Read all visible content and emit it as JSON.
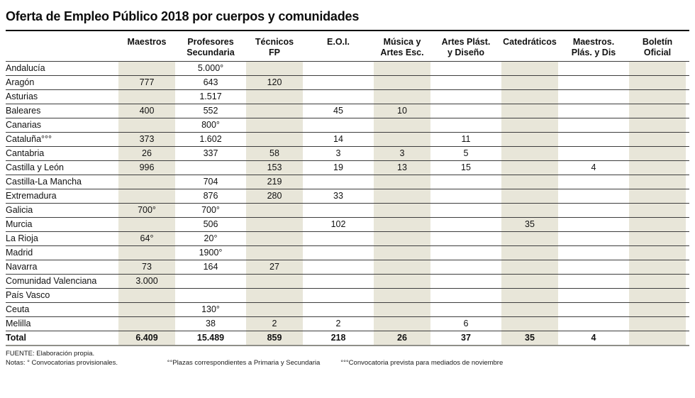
{
  "title": "Oferta de Empleo Público 2018 por cuerpos y comunidades",
  "colors": {
    "band": "#e8e6d9",
    "title_rule": "#000000",
    "row_line": "#3d3d3d",
    "bottom_line": "#8f8f88"
  },
  "chart_data": {
    "type": "table",
    "title": "Oferta de Empleo Público 2018 por cuerpos y comunidades",
    "columns": [
      {
        "line1": "Maestros",
        "line2": "",
        "shaded": true
      },
      {
        "line1": "Profesores",
        "line2": "Secundaria",
        "shaded": false
      },
      {
        "line1": "Técnicos",
        "line2": "FP",
        "shaded": true
      },
      {
        "line1": "E.O.I.",
        "line2": "",
        "shaded": false
      },
      {
        "line1": "Música y",
        "line2": "Artes Esc.",
        "shaded": true
      },
      {
        "line1": "Artes Plást.",
        "line2": "y Diseño",
        "shaded": false
      },
      {
        "line1": "Catedráticos",
        "line2": "",
        "shaded": true
      },
      {
        "line1": "Maestros.",
        "line2": "Plás. y Dis",
        "shaded": false
      },
      {
        "line1": "Boletín",
        "line2": "Oficial",
        "shaded": true
      }
    ],
    "rows": [
      {
        "region": "Andalucía",
        "values": [
          "",
          "5.000°",
          "",
          "",
          "",
          "",
          "",
          "",
          ""
        ]
      },
      {
        "region": "Aragón",
        "values": [
          "777",
          "643",
          "120",
          "",
          "",
          "",
          "",
          "",
          ""
        ]
      },
      {
        "region": "Asturias",
        "values": [
          "",
          "1.517",
          "",
          "",
          "",
          "",
          "",
          "",
          ""
        ]
      },
      {
        "region": "Baleares",
        "values": [
          "400",
          "552",
          "",
          "45",
          "10",
          "",
          "",
          "",
          ""
        ]
      },
      {
        "region": "Canarias",
        "values": [
          "",
          "800°",
          "",
          "",
          "",
          "",
          "",
          "",
          ""
        ]
      },
      {
        "region": "Cataluña°°°",
        "values": [
          "373",
          "1.602",
          "",
          "14",
          "",
          "11",
          "",
          "",
          ""
        ]
      },
      {
        "region": "Cantabria",
        "values": [
          "26",
          "337",
          "58",
          "3",
          "3",
          "5",
          "",
          "",
          ""
        ]
      },
      {
        "region": "Castilla y León",
        "values": [
          "996",
          "",
          "153",
          "19",
          "13",
          "15",
          "",
          "4",
          ""
        ]
      },
      {
        "region": "Castilla-La Mancha",
        "values": [
          "",
          "704",
          "219",
          "",
          "",
          "",
          "",
          "",
          ""
        ]
      },
      {
        "region": "Extremadura",
        "values": [
          "",
          "876",
          "280",
          "33",
          "",
          "",
          "",
          "",
          ""
        ]
      },
      {
        "region": "Galicia",
        "values": [
          "700°",
          "700°",
          "",
          "",
          "",
          "",
          "",
          "",
          ""
        ]
      },
      {
        "region": "Murcia",
        "values": [
          "",
          "506",
          "",
          "102",
          "",
          "",
          "35",
          "",
          ""
        ]
      },
      {
        "region": "La Rioja",
        "values": [
          "64°",
          "20°",
          "",
          "",
          "",
          "",
          "",
          "",
          ""
        ]
      },
      {
        "region": "Madrid",
        "values": [
          "",
          "1900°",
          "",
          "",
          "",
          "",
          "",
          "",
          ""
        ]
      },
      {
        "region": "Navarra",
        "values": [
          "73",
          "164",
          "27",
          "",
          "",
          "",
          "",
          "",
          ""
        ]
      },
      {
        "region": "Comunidad Valenciana",
        "values": [
          "3.000",
          "",
          "",
          "",
          "",
          "",
          "",
          "",
          ""
        ]
      },
      {
        "region": "País Vasco",
        "values": [
          "",
          "",
          "",
          "",
          "",
          "",
          "",
          "",
          ""
        ]
      },
      {
        "region": "Ceuta",
        "values": [
          "",
          "130°",
          "",
          "",
          "",
          "",
          "",
          "",
          ""
        ]
      },
      {
        "region": "Melilla",
        "values": [
          "",
          "38",
          "2",
          "2",
          "",
          "6",
          "",
          "",
          ""
        ]
      },
      {
        "region": "Total",
        "values": [
          "6.409",
          "15.489",
          "859",
          "218",
          "26",
          "37",
          "35",
          "4",
          ""
        ],
        "bold": true
      }
    ]
  },
  "footer": {
    "fuente": "FUENTE: Elaboración propia.",
    "notas": [
      "Notas: ° Convocatorias provisionales.",
      "°°Plazas correspondientes a Primaria y Secundaria",
      "°°°Convocatoria prevista para mediados de noviembre"
    ]
  }
}
